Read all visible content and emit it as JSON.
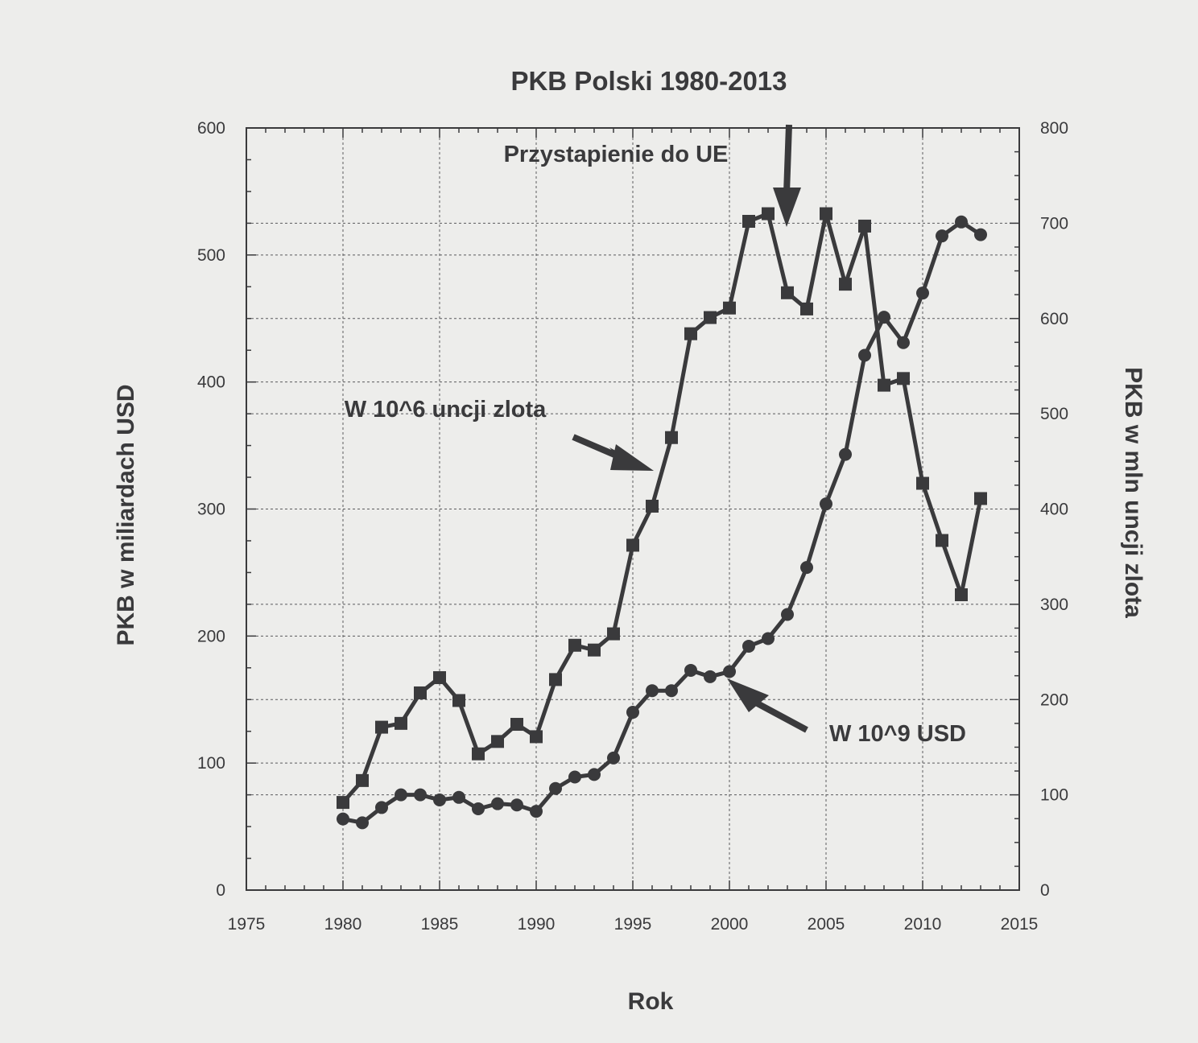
{
  "chart_data": {
    "type": "line",
    "title": "PKB Polski 1980-2013",
    "xlabel": "Rok",
    "ylabel": "PKB w miliardach USD",
    "y2label": "PKB w mln uncji zlota",
    "xlim": [
      1975,
      2015
    ],
    "ylim": [
      0,
      600
    ],
    "y2lim": [
      0,
      800
    ],
    "x_ticks": [
      1975,
      1980,
      1985,
      1990,
      1995,
      2000,
      2005,
      2010,
      2015
    ],
    "y_ticks": [
      0,
      100,
      200,
      300,
      400,
      500,
      600
    ],
    "y2_ticks": [
      0,
      100,
      200,
      300,
      400,
      500,
      600,
      700,
      800
    ],
    "grid": true,
    "series": [
      {
        "name": "W 10^9 USD",
        "axis": "left",
        "marker": "circle",
        "x": [
          1980,
          1981,
          1982,
          1983,
          1984,
          1985,
          1986,
          1987,
          1988,
          1989,
          1990,
          1991,
          1992,
          1993,
          1994,
          1995,
          1996,
          1997,
          1998,
          1999,
          2000,
          2001,
          2002,
          2003,
          2004,
          2005,
          2006,
          2007,
          2008,
          2009,
          2010,
          2011,
          2012,
          2013
        ],
        "values": [
          56,
          53,
          65,
          75,
          75,
          71,
          73,
          64,
          68,
          67,
          62,
          80,
          89,
          91,
          104,
          140,
          157,
          157,
          173,
          168,
          172,
          192,
          198,
          217,
          254,
          304,
          343,
          421,
          451,
          431,
          470,
          515,
          526,
          516
        ]
      },
      {
        "name": "W 10^6 uncji zlota",
        "axis": "right",
        "marker": "square",
        "x": [
          1980,
          1981,
          1982,
          1983,
          1984,
          1985,
          1986,
          1987,
          1988,
          1989,
          1990,
          1991,
          1992,
          1993,
          1994,
          1995,
          1996,
          1997,
          1998,
          1999,
          2000,
          2001,
          2002,
          2003,
          2004,
          2005,
          2006,
          2007,
          2008,
          2009,
          2010,
          2011,
          2012,
          2013
        ],
        "values": [
          92,
          115,
          171,
          175,
          207,
          223,
          199,
          143,
          156,
          174,
          161,
          221,
          257,
          252,
          269,
          362,
          403,
          475,
          584,
          601,
          611,
          702,
          710,
          627,
          610,
          710,
          636,
          697,
          530,
          537,
          427,
          367,
          310,
          411
        ]
      }
    ],
    "annotations": [
      {
        "text": "Przystapienie do UE",
        "x": 2003
      },
      {
        "text": "W 10^6 uncji zlota",
        "points_to": "series-2"
      },
      {
        "text": "W 10^9 USD",
        "points_to": "series-1"
      }
    ]
  }
}
